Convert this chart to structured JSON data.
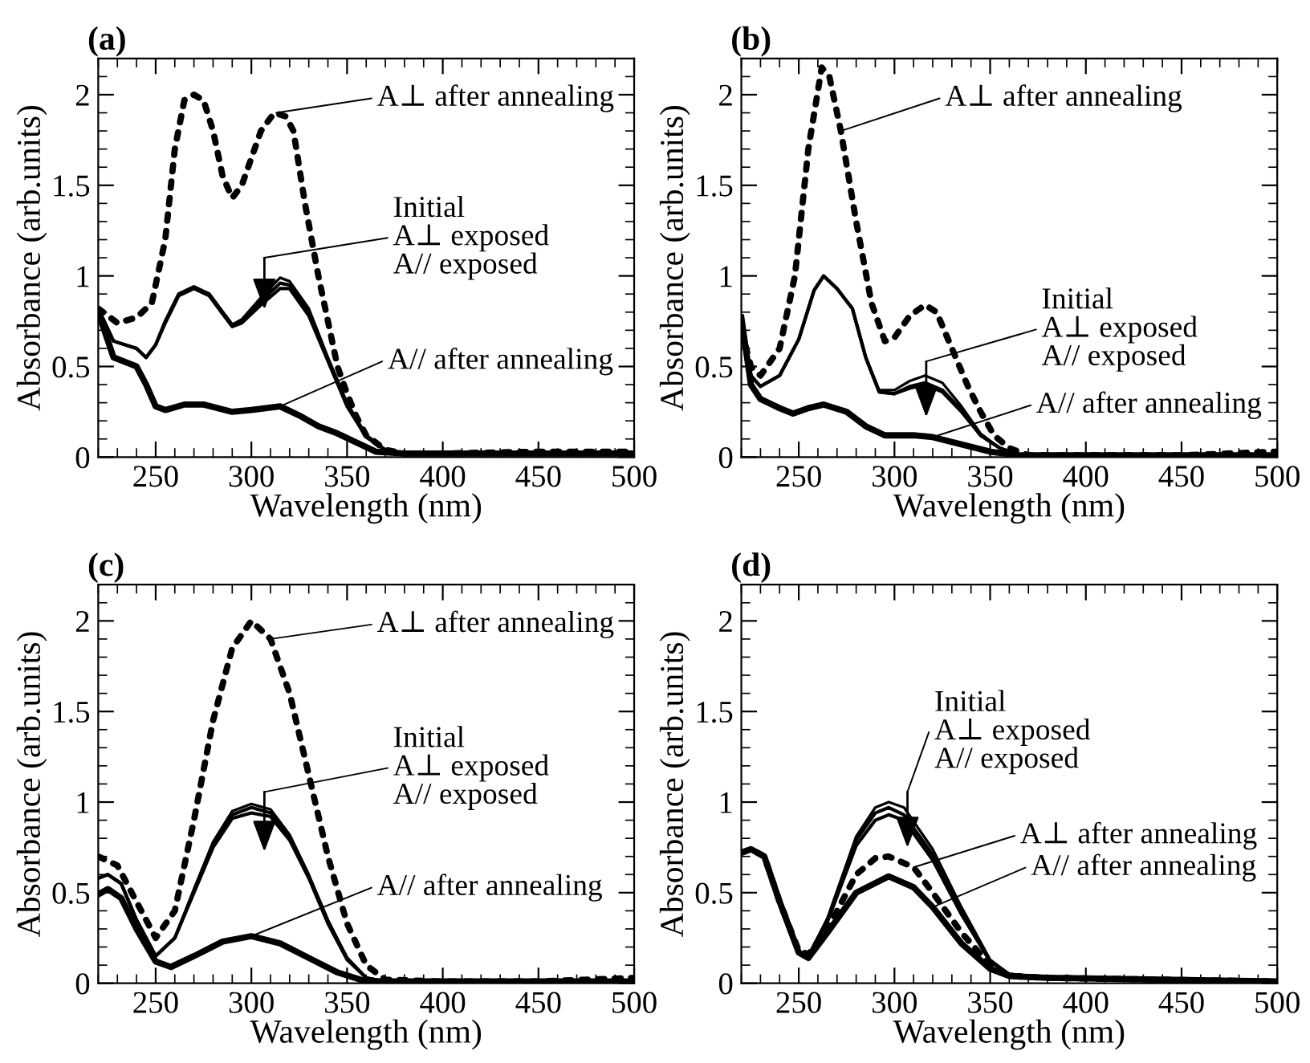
{
  "chart_data": [
    {
      "type": "line",
      "title": "(a)",
      "xlabel": "Wavelength (nm)",
      "ylabel": "Absorbance (arb.units)",
      "xlim": [
        220,
        500
      ],
      "ylim": [
        0,
        2.2
      ],
      "xticks": [
        250,
        300,
        350,
        400,
        450,
        500
      ],
      "yticks": [
        0,
        0.5,
        1,
        1.5,
        2
      ],
      "grid": false,
      "series": [
        {
          "color": "#000000",
          "line_style": "solid",
          "x": [
            220,
            228,
            240,
            245,
            250,
            255,
            262,
            270,
            278,
            285,
            290,
            295,
            305,
            315,
            320,
            330,
            340,
            350,
            360,
            370,
            380,
            500
          ],
          "values": [
            0.82,
            0.64,
            0.6,
            0.55,
            0.62,
            0.75,
            0.9,
            0.94,
            0.9,
            0.8,
            0.73,
            0.76,
            0.88,
            0.99,
            0.97,
            0.82,
            0.55,
            0.3,
            0.12,
            0.04,
            0.02,
            0.02
          ]
        },
        {
          "color": "#000000",
          "line_style": "solid",
          "x": [
            220,
            228,
            240,
            245,
            250,
            255,
            262,
            270,
            278,
            285,
            290,
            295,
            305,
            315,
            320,
            330,
            340,
            350,
            360,
            370,
            380,
            500
          ],
          "values": [
            0.82,
            0.64,
            0.6,
            0.55,
            0.62,
            0.75,
            0.9,
            0.94,
            0.9,
            0.8,
            0.73,
            0.75,
            0.86,
            0.96,
            0.95,
            0.8,
            0.54,
            0.29,
            0.12,
            0.04,
            0.02,
            0.02
          ]
        },
        {
          "color": "#000000",
          "line_style": "solid",
          "x": [
            220,
            228,
            240,
            245,
            250,
            255,
            262,
            270,
            278,
            285,
            290,
            295,
            305,
            315,
            320,
            330,
            340,
            350,
            360,
            370,
            380,
            500
          ],
          "values": [
            0.82,
            0.64,
            0.6,
            0.55,
            0.62,
            0.74,
            0.89,
            0.93,
            0.89,
            0.79,
            0.72,
            0.74,
            0.84,
            0.93,
            0.93,
            0.78,
            0.53,
            0.28,
            0.11,
            0.04,
            0.02,
            0.02
          ]
        },
        {
          "color": "#000000",
          "line_style": "dotted",
          "x": [
            220,
            230,
            240,
            248,
            255,
            260,
            265,
            270,
            275,
            280,
            285,
            290,
            295,
            300,
            305,
            312,
            318,
            322,
            328,
            335,
            340,
            345,
            350,
            355,
            360,
            370,
            380,
            400,
            450,
            500
          ],
          "values": [
            0.82,
            0.74,
            0.77,
            0.85,
            1.2,
            1.7,
            1.97,
            2.0,
            1.97,
            1.8,
            1.55,
            1.43,
            1.5,
            1.65,
            1.8,
            1.9,
            1.88,
            1.8,
            1.4,
            1.0,
            0.75,
            0.5,
            0.35,
            0.22,
            0.12,
            0.04,
            0.02,
            0.02,
            0.03,
            0.03
          ]
        },
        {
          "color": "#000000",
          "line_style": "solid",
          "x": [
            220,
            228,
            240,
            245,
            250,
            255,
            265,
            275,
            290,
            300,
            315,
            325,
            335,
            345,
            355,
            365,
            380,
            500
          ],
          "values": [
            0.8,
            0.55,
            0.5,
            0.4,
            0.28,
            0.26,
            0.29,
            0.29,
            0.25,
            0.26,
            0.28,
            0.23,
            0.17,
            0.13,
            0.08,
            0.03,
            0.02,
            0.02
          ]
        }
      ],
      "annotations": [
        {
          "text": "A⊥ after annealing",
          "x": 313,
          "y": 1.9
        },
        "Initial\nA⊥ exposed\nA// exposed",
        {
          "text": "A// after annealing",
          "x": 315,
          "y": 0.28
        }
      ]
    },
    {
      "type": "line",
      "title": "(b)",
      "xlabel": "Wavelength (nm)",
      "ylabel": "Absorbance (arb.units)",
      "xlim": [
        220,
        500
      ],
      "ylim": [
        0,
        2.2
      ],
      "xticks": [
        250,
        300,
        350,
        400,
        450,
        500
      ],
      "yticks": [
        0,
        0.5,
        1,
        1.5,
        2
      ],
      "grid": false,
      "series": [
        {
          "color": "#000000",
          "line_style": "solid",
          "x": [
            220,
            225,
            230,
            240,
            250,
            258,
            263,
            270,
            278,
            285,
            292,
            300,
            308,
            316,
            325,
            335,
            345,
            355,
            365,
            500
          ],
          "values": [
            0.77,
            0.45,
            0.39,
            0.45,
            0.65,
            0.92,
            1.0,
            0.93,
            0.82,
            0.55,
            0.37,
            0.37,
            0.42,
            0.45,
            0.41,
            0.28,
            0.13,
            0.05,
            0.01,
            0.01
          ]
        },
        {
          "color": "#000000",
          "line_style": "solid",
          "x": [
            220,
            225,
            230,
            240,
            250,
            258,
            263,
            270,
            278,
            285,
            292,
            300,
            308,
            316,
            325,
            335,
            345,
            355,
            365,
            500
          ],
          "values": [
            0.77,
            0.45,
            0.39,
            0.45,
            0.65,
            0.92,
            1.0,
            0.93,
            0.82,
            0.55,
            0.36,
            0.35,
            0.39,
            0.41,
            0.37,
            0.26,
            0.12,
            0.05,
            0.01,
            0.01
          ]
        },
        {
          "color": "#000000",
          "line_style": "solid",
          "x": [
            220,
            225,
            230,
            240,
            250,
            258,
            263,
            270,
            278,
            285,
            292,
            300,
            308,
            316,
            325,
            335,
            345,
            355,
            365,
            500
          ],
          "values": [
            0.77,
            0.45,
            0.39,
            0.45,
            0.65,
            0.92,
            1.0,
            0.93,
            0.82,
            0.55,
            0.36,
            0.35,
            0.38,
            0.4,
            0.36,
            0.25,
            0.12,
            0.05,
            0.01,
            0.01
          ]
        },
        {
          "color": "#000000",
          "line_style": "dotted",
          "x": [
            220,
            225,
            230,
            240,
            248,
            255,
            262,
            266,
            272,
            280,
            288,
            295,
            300,
            308,
            316,
            322,
            330,
            338,
            345,
            352,
            360,
            370,
            400,
            450,
            500
          ],
          "values": [
            0.7,
            0.5,
            0.45,
            0.6,
            1.0,
            1.7,
            2.15,
            2.1,
            1.8,
            1.3,
            0.85,
            0.64,
            0.66,
            0.78,
            0.84,
            0.8,
            0.6,
            0.4,
            0.25,
            0.12,
            0.05,
            0.01,
            0.01,
            0.01,
            0.03
          ]
        },
        {
          "color": "#000000",
          "line_style": "solid",
          "x": [
            220,
            225,
            230,
            240,
            247,
            255,
            263,
            275,
            285,
            295,
            310,
            320,
            335,
            350,
            365,
            500
          ],
          "values": [
            0.77,
            0.4,
            0.32,
            0.27,
            0.24,
            0.27,
            0.29,
            0.25,
            0.17,
            0.12,
            0.12,
            0.11,
            0.07,
            0.03,
            0.01,
            0.01
          ]
        }
      ],
      "annotations": [
        {
          "text": "A⊥ after annealing",
          "x": 272,
          "y": 1.8
        },
        "Initial\nA⊥ exposed\nA// exposed",
        {
          "text": "A// after annealing",
          "x": 320,
          "y": 0.11
        }
      ]
    },
    {
      "type": "line",
      "title": "(c)",
      "xlabel": "Wavelength (nm)",
      "ylabel": "Absorbance (arb.units)",
      "xlim": [
        220,
        500
      ],
      "ylim": [
        0,
        2.2
      ],
      "xticks": [
        250,
        300,
        350,
        400,
        450,
        500
      ],
      "yticks": [
        0,
        0.5,
        1,
        1.5,
        2
      ],
      "grid": false,
      "series": [
        {
          "color": "#000000",
          "line_style": "solid",
          "x": [
            220,
            225,
            232,
            240,
            250,
            260,
            270,
            280,
            290,
            300,
            310,
            320,
            330,
            340,
            350,
            360,
            370,
            500
          ],
          "values": [
            0.58,
            0.6,
            0.55,
            0.35,
            0.15,
            0.25,
            0.52,
            0.78,
            0.95,
            0.99,
            0.96,
            0.82,
            0.6,
            0.35,
            0.14,
            0.03,
            0.01,
            0.01
          ]
        },
        {
          "color": "#000000",
          "line_style": "solid",
          "x": [
            220,
            225,
            232,
            240,
            250,
            260,
            270,
            280,
            290,
            300,
            310,
            320,
            330,
            340,
            350,
            360,
            370,
            500
          ],
          "values": [
            0.58,
            0.6,
            0.55,
            0.35,
            0.15,
            0.25,
            0.51,
            0.77,
            0.93,
            0.97,
            0.94,
            0.8,
            0.59,
            0.34,
            0.14,
            0.03,
            0.01,
            0.01
          ]
        },
        {
          "color": "#000000",
          "line_style": "solid",
          "x": [
            220,
            225,
            232,
            240,
            250,
            260,
            270,
            280,
            290,
            300,
            310,
            320,
            330,
            340,
            350,
            360,
            370,
            500
          ],
          "values": [
            0.58,
            0.6,
            0.55,
            0.35,
            0.15,
            0.25,
            0.5,
            0.75,
            0.91,
            0.94,
            0.92,
            0.79,
            0.58,
            0.33,
            0.13,
            0.03,
            0.01,
            0.01
          ]
        },
        {
          "color": "#000000",
          "line_style": "dotted",
          "x": [
            220,
            230,
            240,
            250,
            260,
            270,
            280,
            290,
            300,
            310,
            320,
            330,
            340,
            350,
            360,
            370,
            400,
            450,
            500
          ],
          "values": [
            0.7,
            0.65,
            0.45,
            0.25,
            0.4,
            0.9,
            1.45,
            1.85,
            2.0,
            1.9,
            1.6,
            1.15,
            0.7,
            0.33,
            0.1,
            0.02,
            0.01,
            0.01,
            0.03
          ]
        },
        {
          "color": "#000000",
          "line_style": "solid",
          "x": [
            220,
            225,
            232,
            240,
            250,
            258,
            270,
            285,
            300,
            315,
            330,
            345,
            360,
            500
          ],
          "values": [
            0.49,
            0.52,
            0.47,
            0.3,
            0.12,
            0.09,
            0.15,
            0.23,
            0.26,
            0.22,
            0.14,
            0.06,
            0.01,
            0.01
          ]
        }
      ],
      "annotations": [
        {
          "text": "A⊥ after annealing",
          "x": 310,
          "y": 1.9
        },
        "Initial\nA⊥ exposed\nA// exposed",
        {
          "text": "A// after annealing",
          "x": 300,
          "y": 0.26
        }
      ]
    },
    {
      "type": "line",
      "title": "(d)",
      "xlabel": "Wavelength (nm)",
      "ylabel": "Absorbance (arb.units)",
      "xlim": [
        220,
        500
      ],
      "ylim": [
        0,
        2.2
      ],
      "xticks": [
        250,
        300,
        350,
        400,
        450,
        500
      ],
      "yticks": [
        0,
        0.5,
        1,
        1.5,
        2
      ],
      "grid": false,
      "series": [
        {
          "color": "#000000",
          "line_style": "solid",
          "x": [
            220,
            225,
            232,
            240,
            250,
            255,
            265,
            280,
            290,
            297,
            305,
            320,
            335,
            350,
            360,
            380,
            450,
            500
          ],
          "values": [
            0.72,
            0.74,
            0.7,
            0.45,
            0.17,
            0.15,
            0.36,
            0.81,
            0.97,
            1.0,
            0.97,
            0.74,
            0.42,
            0.13,
            0.05,
            0.03,
            0.02,
            0.01
          ]
        },
        {
          "color": "#000000",
          "line_style": "solid",
          "x": [
            220,
            225,
            232,
            240,
            250,
            255,
            265,
            280,
            290,
            297,
            305,
            320,
            335,
            350,
            360,
            380,
            450,
            500
          ],
          "values": [
            0.72,
            0.74,
            0.7,
            0.45,
            0.17,
            0.15,
            0.35,
            0.79,
            0.94,
            0.97,
            0.93,
            0.71,
            0.4,
            0.12,
            0.05,
            0.03,
            0.02,
            0.01
          ]
        },
        {
          "color": "#000000",
          "line_style": "solid",
          "x": [
            220,
            225,
            232,
            240,
            250,
            255,
            265,
            280,
            290,
            297,
            305,
            320,
            335,
            350,
            360,
            380,
            450,
            500
          ],
          "values": [
            0.72,
            0.74,
            0.7,
            0.45,
            0.17,
            0.15,
            0.34,
            0.76,
            0.9,
            0.93,
            0.9,
            0.68,
            0.38,
            0.12,
            0.05,
            0.03,
            0.02,
            0.01
          ]
        },
        {
          "color": "#000000",
          "line_style": "dotted",
          "x": [
            220,
            225,
            232,
            240,
            250,
            255,
            265,
            280,
            290,
            297,
            310,
            320,
            335,
            350,
            360,
            380,
            500
          ],
          "values": [
            0.72,
            0.74,
            0.7,
            0.45,
            0.18,
            0.16,
            0.3,
            0.6,
            0.69,
            0.7,
            0.64,
            0.5,
            0.28,
            0.1,
            0.04,
            0.03,
            0.01
          ]
        },
        {
          "color": "#000000",
          "line_style": "solid",
          "x": [
            220,
            225,
            232,
            240,
            250,
            255,
            265,
            280,
            297,
            310,
            320,
            335,
            350,
            360,
            380,
            500
          ],
          "values": [
            0.72,
            0.74,
            0.7,
            0.45,
            0.17,
            0.14,
            0.28,
            0.5,
            0.59,
            0.53,
            0.42,
            0.22,
            0.08,
            0.04,
            0.03,
            0.01
          ]
        }
      ],
      "annotations": [
        "Initial\nA⊥ exposed\nA// exposed",
        {
          "text": "A⊥ after annealing",
          "x": 310,
          "y": 0.64
        },
        {
          "text": "A// after annealing",
          "x": 320,
          "y": 0.42
        }
      ]
    }
  ]
}
